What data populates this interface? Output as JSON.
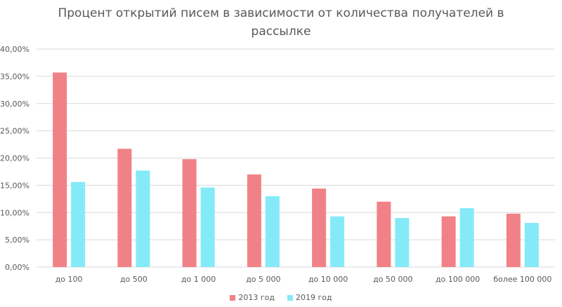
{
  "chart_data": {
    "type": "bar",
    "title": "Процент открытий писем в зависимости от количества получателей в рассылке",
    "xlabel": "",
    "ylabel": "",
    "ylim": [
      0,
      40
    ],
    "yticks": [
      "0,00%",
      "5,00%",
      "10,00%",
      "15,00%",
      "20,00%",
      "25,00%",
      "30,00%",
      "35,00%",
      "40,00%"
    ],
    "grid": true,
    "legend_position": "bottom",
    "categories": [
      "до 100",
      "до 500",
      "до 1 000",
      "до 5 000",
      "до 10 000",
      "до 50 000",
      "до 100 000",
      "более 100 000"
    ],
    "series": [
      {
        "name": "2013 год",
        "color": "#F08287",
        "values": [
          35.7,
          21.7,
          19.8,
          17.0,
          14.4,
          12.0,
          9.3,
          9.8
        ]
      },
      {
        "name": "2019 год",
        "color": "#84EAF8",
        "values": [
          15.6,
          17.7,
          14.6,
          13.0,
          9.3,
          9.0,
          10.8,
          8.1
        ]
      }
    ]
  }
}
